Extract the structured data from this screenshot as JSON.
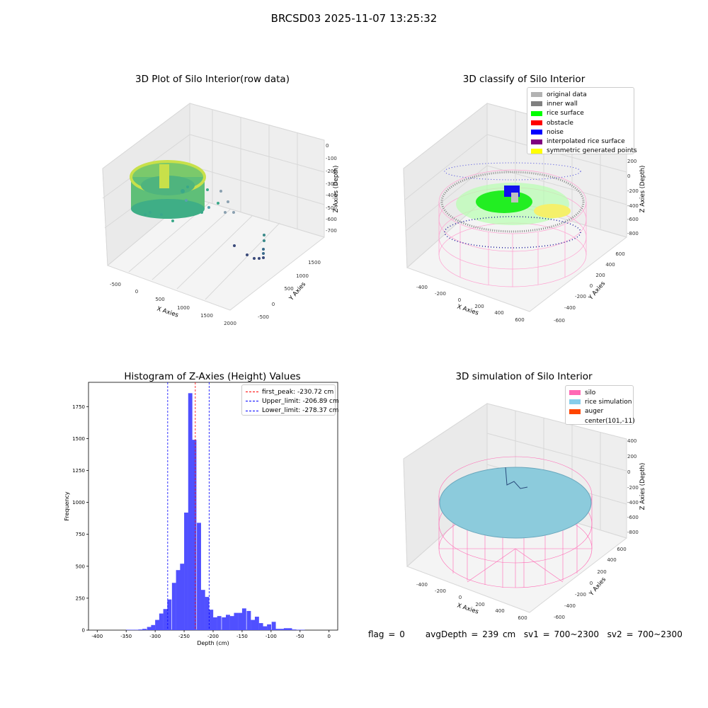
{
  "suptitle": "BRCSD03 2025-11-07 13:25:32",
  "panels": {
    "raw": {
      "title": "3D Plot of Silo Interior(row data)",
      "x_label": "X Axies",
      "y_label": "Y Axies",
      "z_label": "Z Axies (Depth)",
      "x_ticks": [
        "-500",
        "0",
        "500",
        "1000",
        "1500",
        "2000"
      ],
      "y_ticks": [
        "-500",
        "0",
        "500",
        "1000",
        "1500"
      ],
      "z_ticks": [
        "0",
        "-100",
        "-200",
        "-300",
        "-400",
        "-500",
        "-600",
        "-700"
      ]
    },
    "classify": {
      "title": "3D classify of Silo Interior",
      "x_label": "X Axies",
      "y_label": "Y Axies",
      "z_label": "Z Axies (Depth)",
      "x_ticks": [
        "-400",
        "-200",
        "0",
        "200",
        "400",
        "600"
      ],
      "y_ticks": [
        "-600",
        "-400",
        "-200",
        "0",
        "200",
        "400",
        "600"
      ],
      "z_ticks": [
        "200",
        "0",
        "-200",
        "-400",
        "-600",
        "-800"
      ],
      "legend": [
        {
          "label": "original data",
          "color": "#b3b3b3"
        },
        {
          "label": "inner wall",
          "color": "#808080"
        },
        {
          "label": "rice surface",
          "color": "#00ff00"
        },
        {
          "label": "obstacle",
          "color": "#ff0000"
        },
        {
          "label": "noise",
          "color": "#0000ff"
        },
        {
          "label": "interpolated rice surface",
          "color": "#800080"
        },
        {
          "label": "symmetric generated points",
          "color": "#ffff00"
        }
      ]
    },
    "simulation": {
      "title": "3D simulation of Silo Interior",
      "x_label": "X Axies",
      "y_label": "Y Axies",
      "z_label": "Z Axies (Depth)",
      "x_ticks": [
        "-400",
        "-200",
        "0",
        "200",
        "400",
        "600"
      ],
      "y_ticks": [
        "-600",
        "-400",
        "-200",
        "0",
        "200",
        "400",
        "600"
      ],
      "z_ticks": [
        "400",
        "200",
        "0",
        "-200",
        "-400",
        "-600",
        "-800"
      ],
      "legend": [
        {
          "label": "silo",
          "color": "#ff69b4"
        },
        {
          "label": "rice simulation",
          "color": "#87ceeb"
        },
        {
          "label": "auger",
          "color": "#ff4500"
        },
        {
          "label": "center(101,-11)",
          "color": "#ffffff"
        }
      ]
    }
  },
  "chart_data": {
    "type": "bar",
    "title": "Histogram of Z-Axies (Height) Values",
    "xlabel": "Depth (cm)",
    "ylabel": "Frequency",
    "xlim": [
      -415,
      15
    ],
    "ylim": [
      0,
      1940
    ],
    "x_ticks": [
      -400,
      -350,
      -300,
      -250,
      -200,
      -150,
      -100,
      -50,
      0
    ],
    "y_ticks": [
      0,
      250,
      500,
      750,
      1000,
      1250,
      1500,
      1750
    ],
    "bar_color": "#5050ff",
    "bin_width": 7.2,
    "bins_start": [
      -350,
      -343,
      -336,
      -329,
      -322,
      -314,
      -307,
      -300,
      -293,
      -286,
      -279,
      -271,
      -264,
      -257,
      -250,
      -243,
      -236,
      -228,
      -221,
      -214,
      -207,
      -200,
      -193,
      -185,
      -178,
      -171,
      -164,
      -157,
      -150,
      -142,
      -135,
      -128,
      -121,
      -114,
      -107,
      -99,
      -92,
      -85,
      -78,
      -71,
      -64,
      -56,
      -49,
      -42,
      -35,
      -28,
      -21,
      -13,
      -6
    ],
    "values": [
      3,
      3,
      3,
      5,
      10,
      25,
      40,
      80,
      130,
      165,
      240,
      370,
      470,
      520,
      920,
      1855,
      1490,
      840,
      315,
      260,
      160,
      100,
      110,
      100,
      120,
      110,
      135,
      135,
      170,
      150,
      80,
      105,
      55,
      30,
      45,
      65,
      10,
      10,
      15,
      15,
      5,
      3,
      3,
      0,
      0,
      0,
      0,
      0,
      0
    ],
    "lines": [
      {
        "name": "first_peak: -230.72 cm",
        "x": -230.72,
        "color": "#ff0000"
      },
      {
        "name": "Upper_limit: -206.89 cm",
        "x": -206.89,
        "color": "#0000ff"
      },
      {
        "name": "Lower_limit: -278.37 cm",
        "x": -278.37,
        "color": "#0000ff"
      }
    ]
  },
  "footer": "flag = 0     avgDepth = 239 cm  sv1 = 700~2300  sv2 = 700~2300"
}
